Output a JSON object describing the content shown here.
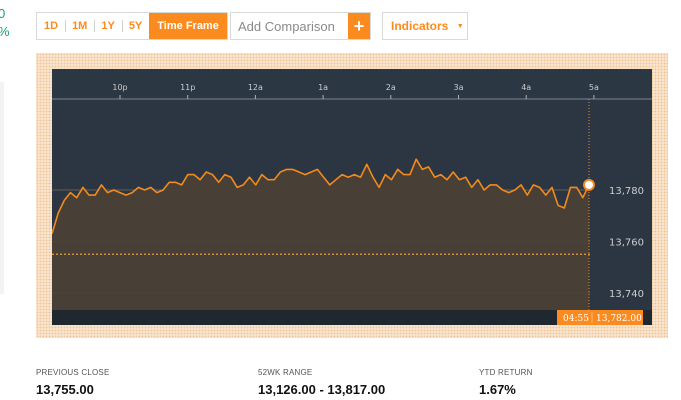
{
  "edge": {
    "value_line1": "0",
    "value_line2": "%"
  },
  "time_frame": {
    "buttons": [
      "1D",
      "1M",
      "1Y",
      "5Y"
    ],
    "selected": "1D",
    "time_frame_label": "Time Frame"
  },
  "comparison": {
    "placeholder": "Add Comparison",
    "add_symbol": "+"
  },
  "indicators": {
    "label": "Indicators",
    "caret": "▼"
  },
  "colors": {
    "accent": "#fb8b1e",
    "chart_bg": "#2b3642",
    "line": "#f38a1c"
  },
  "chart_data": {
    "type": "area",
    "x_ticks": [
      "10p",
      "11p",
      "12a",
      "1a",
      "2a",
      "3a",
      "4a",
      "5a"
    ],
    "y_ticks": [
      "13,780",
      "13,760",
      "13,740"
    ],
    "previous_close_line": 13755,
    "cursor": {
      "time": "04:55",
      "value": "13,782.00"
    },
    "values": [
      13763,
      13771,
      13776,
      13779,
      13777,
      13781,
      13778,
      13778,
      13782,
      13779,
      13780,
      13779,
      13778,
      13779,
      13781,
      13780,
      13781,
      13779,
      13780,
      13783,
      13783,
      13782,
      13786,
      13786,
      13784,
      13787,
      13786,
      13783,
      13786,
      13785,
      13781,
      13782,
      13785,
      13782,
      13786,
      13784,
      13784,
      13787,
      13788,
      13788,
      13787,
      13786,
      13787,
      13788,
      13785,
      13782,
      13784,
      13786,
      13785,
      13786,
      13785,
      13790,
      13785,
      13781,
      13786,
      13784,
      13788,
      13786,
      13786,
      13792,
      13788,
      13789,
      13785,
      13786,
      13784,
      13787,
      13784,
      13785,
      13781,
      13784,
      13780,
      13782,
      13782,
      13780,
      13779,
      13780,
      13782,
      13778,
      13782,
      13781,
      13778,
      13781,
      13774,
      13773,
      13781,
      13781,
      13777,
      13782
    ]
  },
  "stats": [
    {
      "label": "PREVIOUS CLOSE",
      "value": "13,755.00"
    },
    {
      "label": "52WK RANGE",
      "value": "13,126.00 - 13,817.00"
    },
    {
      "label": "YTD RETURN",
      "value": "1.67%"
    }
  ]
}
